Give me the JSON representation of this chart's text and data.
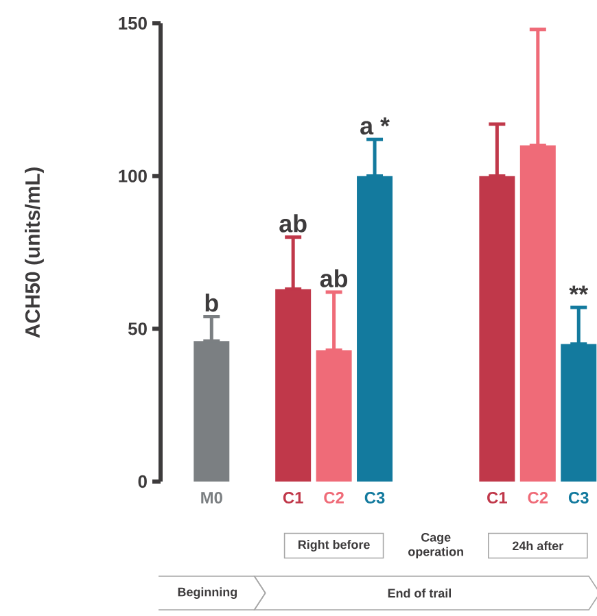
{
  "chart_data": {
    "type": "bar",
    "ylabel": "ACH50 (units/mL)",
    "categories": [
      "M0",
      null,
      "C1",
      "C2",
      "C3",
      null,
      null,
      "C1",
      "C2",
      "C3"
    ],
    "values": [
      46,
      null,
      63,
      43,
      100,
      null,
      null,
      100,
      110,
      45
    ],
    "colors": [
      "#7b7f82",
      "#7b7f82",
      "#c0384a",
      "#ef6b78",
      "#137a9e",
      "#7b7f82",
      "#7b7f82",
      "#c0384a",
      "#ef6b78",
      "#137a9e"
    ],
    "errors": [
      [
        46,
        54
      ],
      null,
      [
        63,
        80
      ],
      [
        43,
        62
      ],
      [
        100,
        112
      ],
      null,
      null,
      [
        100,
        117
      ],
      [
        110,
        148
      ],
      [
        45,
        57
      ]
    ],
    "value_labels": [
      "b",
      null,
      "ab",
      "ab",
      "a *",
      null,
      null,
      null,
      null,
      "**"
    ],
    "ylim": [
      0,
      150
    ],
    "yticks": [
      0,
      50,
      100,
      150
    ],
    "annotations": [
      "Right before",
      "Cage operation",
      "24h after",
      "Beginning",
      "End of trail"
    ]
  }
}
